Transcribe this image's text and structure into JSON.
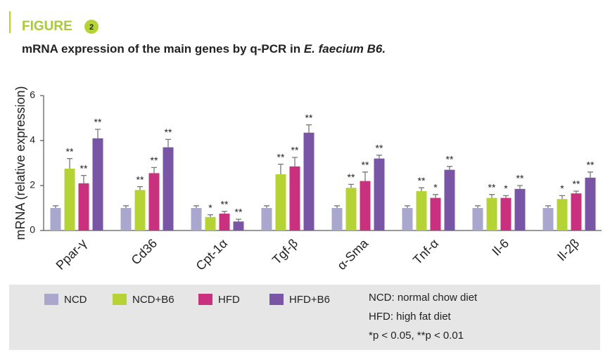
{
  "figure": {
    "label": "FIGURE",
    "number": "2"
  },
  "chart_data": {
    "type": "bar",
    "title": "mRNA expression of the main genes by q-PCR in",
    "title_italic": "E. faecium B6.",
    "y_label": "mRNA (relative expression)",
    "categories": [
      "Ppar-γ",
      "Cd36",
      "Cpt-1α",
      "Tgf-β",
      "α-Sma",
      "Tnf-α",
      "Il-6",
      "Il-2β"
    ],
    "ylim": [
      0,
      6
    ],
    "yticks": [
      0,
      2,
      4,
      6
    ],
    "series": [
      {
        "name": "NCD",
        "color": "#a9a7cd",
        "values": [
          1.0,
          1.0,
          1.0,
          1.0,
          1.0,
          1.0,
          1.0,
          1.0
        ],
        "errors": [
          0.1,
          0.1,
          0.1,
          0.1,
          0.1,
          0.1,
          0.1,
          0.1
        ],
        "significance": [
          null,
          null,
          null,
          null,
          null,
          null,
          null,
          null
        ]
      },
      {
        "name": "NCD+B6",
        "color": "#b6d335",
        "values": [
          2.75,
          1.8,
          0.6,
          2.5,
          1.9,
          1.75,
          1.45,
          1.4
        ],
        "errors": [
          0.45,
          0.15,
          0.1,
          0.45,
          0.15,
          0.15,
          0.15,
          0.15
        ],
        "significance": [
          "**",
          "**",
          "*",
          "**",
          "**",
          "**",
          "**",
          "*"
        ]
      },
      {
        "name": "HFD",
        "color": "#c9317f",
        "values": [
          2.1,
          2.55,
          0.75,
          2.85,
          2.2,
          1.45,
          1.45,
          1.65
        ],
        "errors": [
          0.35,
          0.25,
          0.1,
          0.4,
          0.4,
          0.15,
          0.1,
          0.1
        ],
        "significance": [
          "**",
          "**",
          "**",
          "**",
          "**",
          "*",
          "*",
          "**"
        ]
      },
      {
        "name": "HFD+B6",
        "color": "#7856a5",
        "values": [
          4.1,
          3.7,
          0.4,
          4.35,
          3.2,
          2.7,
          1.85,
          2.35
        ],
        "errors": [
          0.4,
          0.35,
          0.1,
          0.35,
          0.15,
          0.15,
          0.15,
          0.25
        ],
        "significance": [
          "**",
          "**",
          "**",
          "**",
          "**",
          "**",
          "**",
          "**"
        ]
      }
    ],
    "notes": [
      "NCD: normal chow diet",
      "HFD: high fat diet",
      "*p < 0.05, **p < 0.01"
    ]
  }
}
